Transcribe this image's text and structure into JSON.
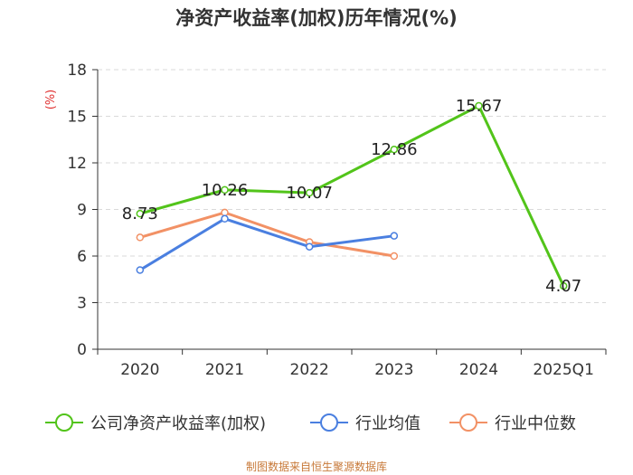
{
  "chart_data": {
    "type": "line",
    "title": "净资产收益率(加权)历年情况(%)",
    "ylabel": "(%)",
    "xlabel": "",
    "ylim": [
      0,
      18
    ],
    "yticks": [
      0,
      3,
      6,
      9,
      12,
      15,
      18
    ],
    "grid": true,
    "legend_position": "bottom",
    "categories": [
      "2020",
      "2021",
      "2022",
      "2023",
      "2024",
      "2025Q1"
    ],
    "series": [
      {
        "name": "公司净资产收益率(加权)",
        "color": "#52c41a",
        "values": [
          8.73,
          10.26,
          10.07,
          12.86,
          15.67,
          4.07
        ],
        "labels": [
          "8.73",
          "10.26",
          "10.07",
          "12.86",
          "15.67",
          "4.07"
        ]
      },
      {
        "name": "行业均值",
        "color": "#4a7fe0",
        "values": [
          5.1,
          8.4,
          6.6,
          7.3,
          null,
          null
        ]
      },
      {
        "name": "行业中位数",
        "color": "#f29165",
        "values": [
          7.2,
          8.8,
          6.9,
          6.0,
          null,
          null
        ]
      }
    ]
  },
  "footer": "制图数据来自恒生聚源数据库"
}
